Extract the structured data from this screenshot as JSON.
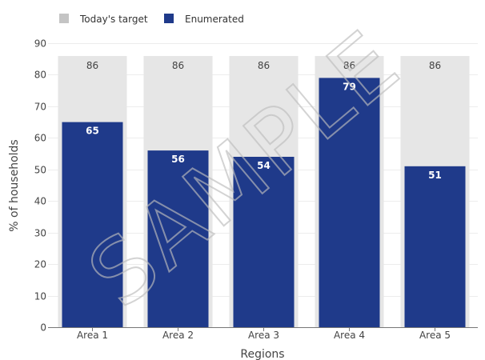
{
  "chart_data": {
    "type": "bar",
    "categories": [
      "Area 1",
      "Area 2",
      "Area 3",
      "Area 4",
      "Area 5"
    ],
    "series": [
      {
        "name": "Today's target",
        "values": [
          86,
          86,
          86,
          86,
          86
        ],
        "color": "#c4c4c4",
        "bar_color": "#e6e6e6"
      },
      {
        "name": "Enumerated",
        "values": [
          65,
          56,
          54,
          79,
          51
        ],
        "color": "#1f3a8a"
      }
    ],
    "xlabel": "Regions",
    "ylabel": "% of households",
    "ylim": [
      0,
      90
    ],
    "yticks": [
      0,
      10,
      20,
      30,
      40,
      50,
      60,
      70,
      80,
      90
    ],
    "grid": true,
    "legend_position": "top-left",
    "watermark": "SAMPLE"
  }
}
